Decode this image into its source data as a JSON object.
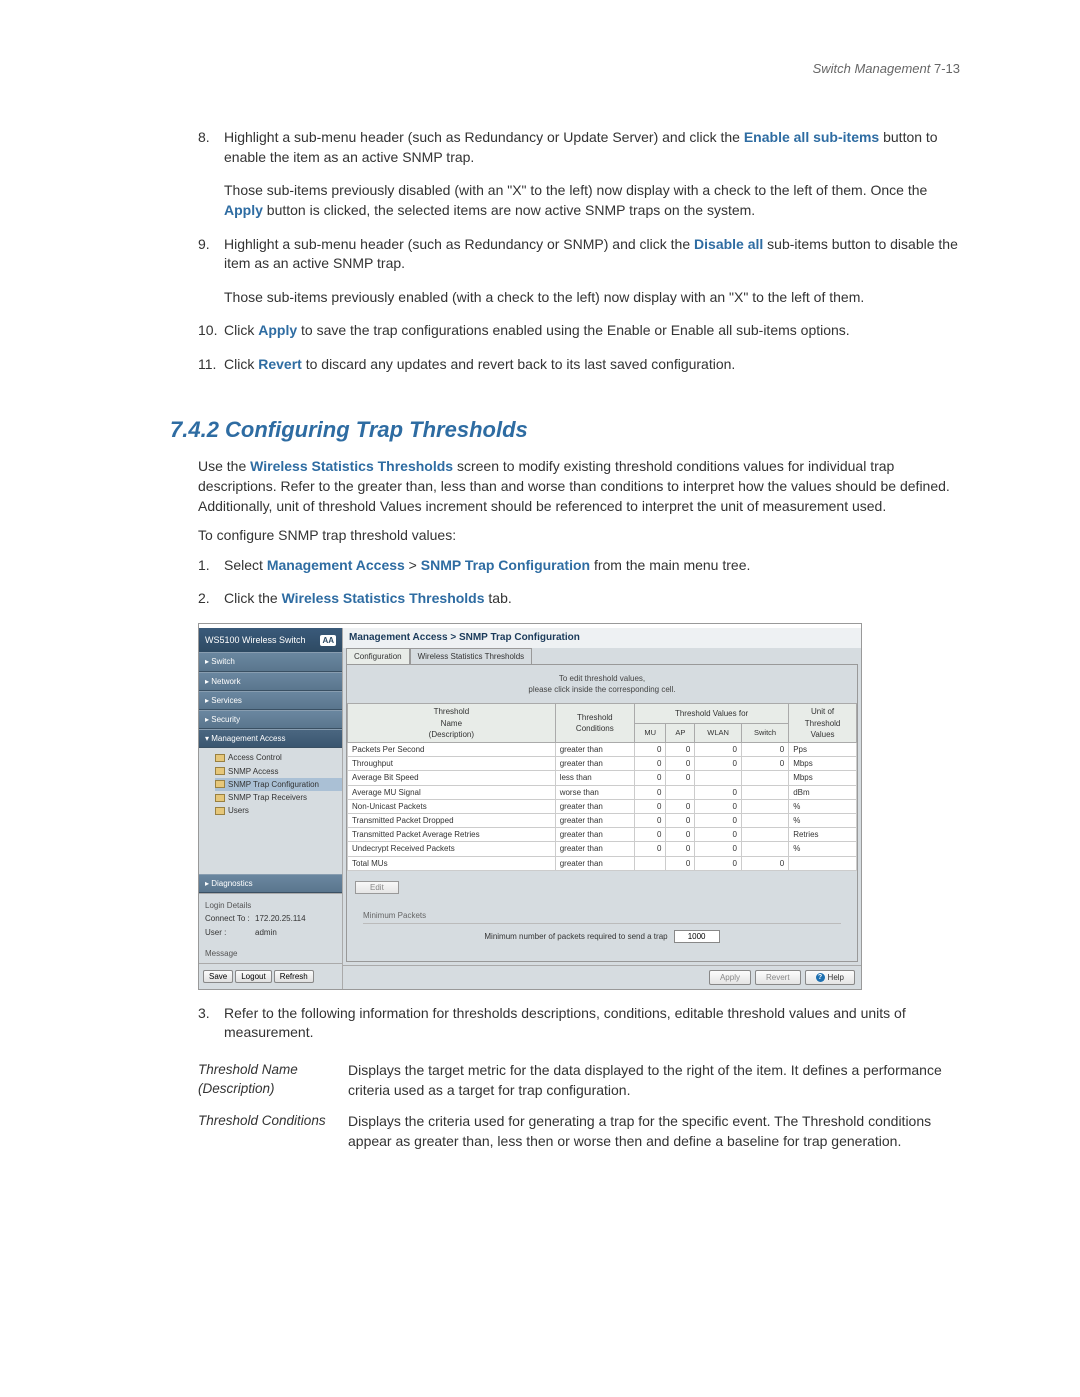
{
  "page_header": {
    "italic": "Switch Management",
    "normal": "  7-13"
  },
  "steps_a": [
    {
      "num": "8.",
      "html": "Highlight a sub-menu header (such as Redundancy or Update Server) and click the <span class='link-blue'>Enable all sub-items</span> button to enable the item as an active SNMP trap.",
      "sub": [
        "Those sub-items previously disabled (with an \"X\" to the left) now display with a check to the left of them. Once the <span class='link-blue'>Apply</span> button is clicked, the selected items are now active SNMP traps on the system."
      ]
    },
    {
      "num": "9.",
      "html": "Highlight a sub-menu header (such as Redundancy or SNMP) and click the <span class='link-blue'>Disable all</span> sub-items button to disable the item as an active SNMP trap.",
      "sub": [
        "Those sub-items previously enabled (with a check to the left) now display with an \"X\" to the left of them."
      ]
    },
    {
      "num": "10.",
      "html": "Click <span class='link-blue'>Apply</span> to save the trap configurations enabled using the Enable or Enable all sub-items options.",
      "sub": []
    },
    {
      "num": "11.",
      "html": "Click <span class='link-blue'>Revert</span> to discard any updates and revert back to its last saved configuration.",
      "sub": []
    }
  ],
  "section_title": "7.4.2  Configuring Trap Thresholds",
  "intro_para": "Use the <span class='link-blue'>Wireless Statistics Thresholds</span> screen to modify existing threshold conditions values for individual trap descriptions. Refer to the greater than, less than and worse than conditions to interpret how the values should be defined. Additionally, unit of threshold Values increment should be referenced to interpret the unit of measurement used.",
  "configure_line": "To configure SNMP trap threshold values:",
  "steps_b": [
    {
      "num": "1.",
      "html": "Select <span class='link-blue'>Management Access</span> > <span class='link-blue'>SNMP Trap Configuration</span> from the main menu tree."
    },
    {
      "num": "2.",
      "html": "Click the <span class='link-blue'>Wireless Statistics Thresholds</span> tab."
    }
  ],
  "screenshot": {
    "device_title": "WS5100 Wireless Switch",
    "breadcrumb": "Management Access > SNMP Trap Configuration",
    "tabs": [
      "Configuration",
      "Wireless Statistics Thresholds"
    ],
    "active_tab_index": 1,
    "nav": [
      {
        "label": "▸ Switch"
      },
      {
        "label": "▸ Network"
      },
      {
        "label": "▸ Services"
      },
      {
        "label": "▸ Security"
      },
      {
        "label": "▾ Management Access",
        "expanded": true,
        "children": [
          {
            "label": "Access Control"
          },
          {
            "label": "SNMP Access"
          },
          {
            "label": "SNMP Trap Configuration",
            "active": true
          },
          {
            "label": "SNMP Trap Receivers"
          },
          {
            "label": "Users"
          }
        ]
      },
      {
        "label": "▸ Diagnostics",
        "expanded_bottom": true
      }
    ],
    "login": {
      "title": "Login Details",
      "rows": [
        {
          "label": "Connect To :",
          "value": "172.20.25.114"
        },
        {
          "label": "User :",
          "value": "admin"
        }
      ],
      "message_label": "Message"
    },
    "sidebar_buttons": [
      "Save",
      "Logout",
      "Refresh"
    ],
    "instruction_l1": "To edit threshold values,",
    "instruction_l2": "please click inside the corresponding cell.",
    "table": {
      "group_headers": [
        "Threshold Name (Description)",
        "Threshold Conditions",
        "Threshold Values for",
        "Unit of Threshold Values"
      ],
      "sub_headers": [
        "MU",
        "AP",
        "WLAN",
        "Switch"
      ],
      "rows": [
        {
          "name": "Packets Per Second",
          "cond": "greater than",
          "mu": "0",
          "ap": "0",
          "wlan": "0",
          "switch": "0",
          "unit": "Pps"
        },
        {
          "name": "Throughput",
          "cond": "greater than",
          "mu": "0",
          "ap": "0",
          "wlan": "0",
          "switch": "0",
          "unit": "Mbps"
        },
        {
          "name": "Average Bit Speed",
          "cond": "less than",
          "mu": "0",
          "ap": "0",
          "wlan": "",
          "switch": "",
          "unit": "Mbps"
        },
        {
          "name": "Average MU Signal",
          "cond": "worse than",
          "mu": "0",
          "ap": "",
          "wlan": "0",
          "switch": "",
          "unit": "dBm"
        },
        {
          "name": "Non-Unicast Packets",
          "cond": "greater than",
          "mu": "0",
          "ap": "0",
          "wlan": "0",
          "switch": "",
          "unit": "%"
        },
        {
          "name": "Transmitted Packet Dropped",
          "cond": "greater than",
          "mu": "0",
          "ap": "0",
          "wlan": "0",
          "switch": "",
          "unit": "%"
        },
        {
          "name": "Transmitted Packet Average Retries",
          "cond": "greater than",
          "mu": "0",
          "ap": "0",
          "wlan": "0",
          "switch": "",
          "unit": "Retries"
        },
        {
          "name": "Undecrypt Received Packets",
          "cond": "greater than",
          "mu": "0",
          "ap": "0",
          "wlan": "0",
          "switch": "",
          "unit": "%"
        },
        {
          "name": "Total MUs",
          "cond": "greater than",
          "mu": "",
          "ap": "0",
          "wlan": "0",
          "switch": "0",
          "unit": ""
        }
      ]
    },
    "edit_button": "Edit",
    "minpackets": {
      "title": "Minimum Packets",
      "label": "Minimum number of packets required to send a trap",
      "value": "1000"
    },
    "bottom_buttons": [
      "Apply",
      "Revert",
      "Help"
    ]
  },
  "steps_c": [
    {
      "num": "3.",
      "html": "Refer to the following information for thresholds descriptions, conditions, editable threshold values and units of measurement."
    }
  ],
  "defs": [
    {
      "term": "Threshold Name (Description)",
      "desc": "Displays the target metric for the data displayed to the right of the item. It defines a performance criteria used as a target for trap configuration."
    },
    {
      "term": "Threshold Conditions",
      "desc": "Displays the criteria used for generating a trap for the specific event. The Threshold conditions appear as greater than, less then or worse then and define a baseline for trap generation."
    }
  ]
}
